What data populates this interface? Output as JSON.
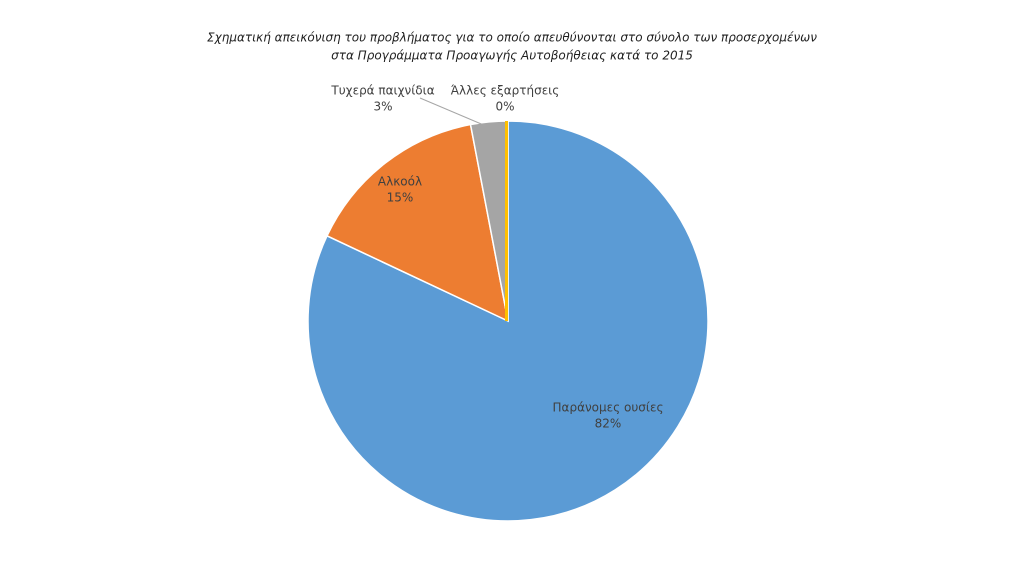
{
  "chart_data": {
    "type": "pie",
    "title": [
      "Σχηματική απεικόνιση του προβλήματος για το οποίο απευθύνονται στο σύνολο των προσερχομένων",
      "στα Προγράμματα Προαγωγής Αυτοβοήθειας κατά το 2015"
    ],
    "categories": [
      "Παράνομες ουσίες",
      "Αλκοόλ",
      "Τυχερά παιχνίδια",
      "Άλλες εξαρτήσεις"
    ],
    "values": [
      82,
      15,
      3,
      0
    ],
    "value_labels": [
      "82%",
      "15%",
      "3%",
      "0%"
    ],
    "colors": [
      "#5b9bd5",
      "#ed7d31",
      "#a5a5a5",
      "#ffc000"
    ]
  }
}
